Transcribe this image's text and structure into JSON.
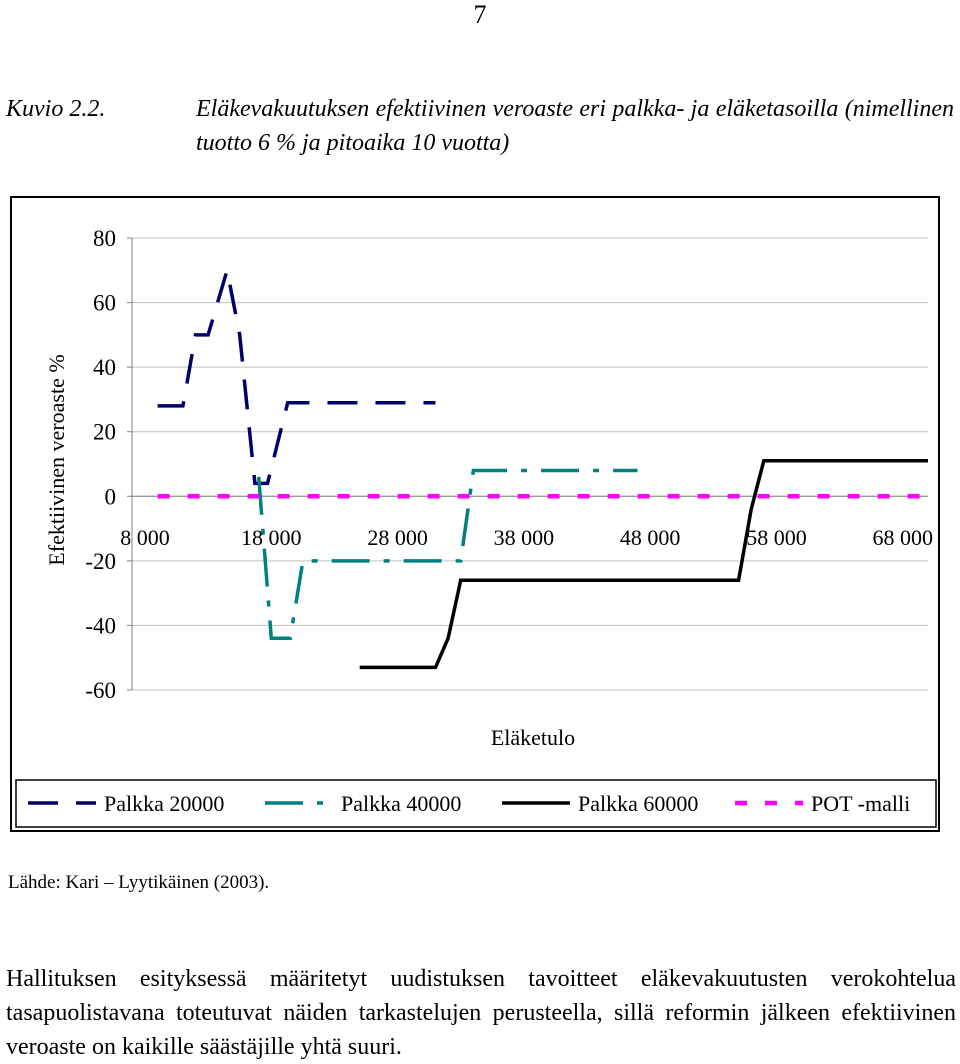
{
  "page_number": "7",
  "caption": {
    "label": "Kuvio 2.2.",
    "text": "Eläkevakuutuksen efektiivinen veroaste eri palkka- ja eläketasoilla (nimellinen tuotto 6 % ja pitoaika 10 vuotta)"
  },
  "source": "Lähde: Kari – Lyytikäinen (2003).",
  "body_text": "Hallituksen esityksessä määritetyt uudistuksen tavoitteet eläkevakuutusten verokohtelua tasapuolistavana toteutuvat näiden tarkastelujen perusteella, sillä reformin jälkeen efektiivinen veroaste on kaikille säästäjille yhtä suuri.",
  "chart_data": {
    "type": "line",
    "xlabel": "Eläketulo",
    "ylabel": "Efektiivinen veroaste %",
    "xlim": [
      8000,
      70000
    ],
    "ylim": [
      -60,
      80
    ],
    "yticks": [
      80,
      60,
      40,
      20,
      0,
      -20,
      -40,
      -60
    ],
    "xticks": [
      8000,
      18000,
      28000,
      38000,
      48000,
      58000,
      68000
    ],
    "xtick_labels": [
      "8 000",
      "18 000",
      "28 000",
      "38 000",
      "48 000",
      "58 000",
      "68 000"
    ],
    "ytick_labels": [
      "80",
      "60",
      "40",
      "20",
      "0",
      "-20",
      "-40",
      "-60"
    ],
    "grid": "horizontal",
    "legend_position": "bottom",
    "series": [
      {
        "name": "Palkka 20000",
        "color": "#000066",
        "dash": "long-dash",
        "x": [
          9000,
          11000,
          12000,
          13000,
          14500,
          15500,
          16700,
          17700,
          19300,
          20500,
          22000,
          31000
        ],
        "y": [
          28,
          28,
          50,
          50,
          70,
          50,
          4,
          4,
          29,
          29,
          29,
          29
        ]
      },
      {
        "name": "Palkka 40000",
        "color": "#008080",
        "dash": "dash-dot",
        "x": [
          17000,
          18000,
          19500,
          20500,
          22000,
          32000,
          33000,
          34000,
          37000,
          47000
        ],
        "y": [
          6,
          -44,
          -44,
          -20,
          -20,
          -20,
          -20,
          8,
          8,
          8
        ]
      },
      {
        "name": "Palkka 60000",
        "color": "#000000",
        "dash": "solid",
        "x": [
          25000,
          31000,
          32000,
          33000,
          44000,
          55000,
          56000,
          57000,
          70000
        ],
        "y": [
          -53,
          -53,
          -44,
          -26,
          -26,
          -26,
          -4,
          11,
          11
        ]
      },
      {
        "name": "POT -malli",
        "color": "#FF00FF",
        "dash": "short-dash",
        "x": [
          9000,
          70000
        ],
        "y": [
          0,
          0
        ]
      }
    ]
  }
}
